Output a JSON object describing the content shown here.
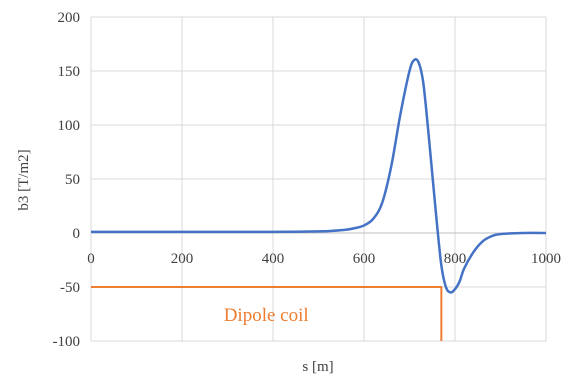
{
  "chart_data": {
    "type": "line",
    "title": "",
    "xlabel": "s [m]",
    "ylabel": "b3 [T/m2]",
    "xlim": [
      0,
      1000
    ],
    "ylim": [
      -100,
      200
    ],
    "x_ticks": [
      0,
      200,
      400,
      600,
      800,
      1000
    ],
    "y_ticks": [
      -100,
      -50,
      0,
      50,
      100,
      150,
      200
    ],
    "x_tick_labels": [
      "0",
      "200",
      "400",
      "600",
      "800",
      "1000"
    ],
    "y_tick_labels": [
      "-100",
      "-50",
      "0",
      "50",
      "100",
      "150",
      "200"
    ],
    "grid": true,
    "legend": "none",
    "series": [
      {
        "color": "#4472c4",
        "x": [
          0,
          100,
          200,
          300,
          400,
          450,
          500,
          530,
          560,
          580,
          600,
          620,
          640,
          660,
          680,
          700,
          710,
          720,
          730,
          740,
          750,
          760,
          770,
          780,
          790,
          800,
          810,
          820,
          840,
          860,
          880,
          900,
          950,
          1000
        ],
        "y": [
          1,
          1,
          1,
          1,
          1,
          1.2,
          1.5,
          2,
          3,
          4.5,
          7,
          13,
          28,
          62,
          110,
          150,
          160,
          158,
          140,
          100,
          55,
          10,
          -30,
          -50,
          -55,
          -52,
          -45,
          -33,
          -18,
          -8,
          -3,
          -1,
          0,
          0
        ]
      },
      {
        "color": "#ed7d31",
        "x": [
          0,
          770,
          770
        ],
        "y": [
          -50,
          -50,
          -100
        ]
      }
    ],
    "annotations": [
      {
        "text": "Dipole coil",
        "x": 385,
        "y": -75,
        "color": "#ed7d31"
      }
    ]
  }
}
